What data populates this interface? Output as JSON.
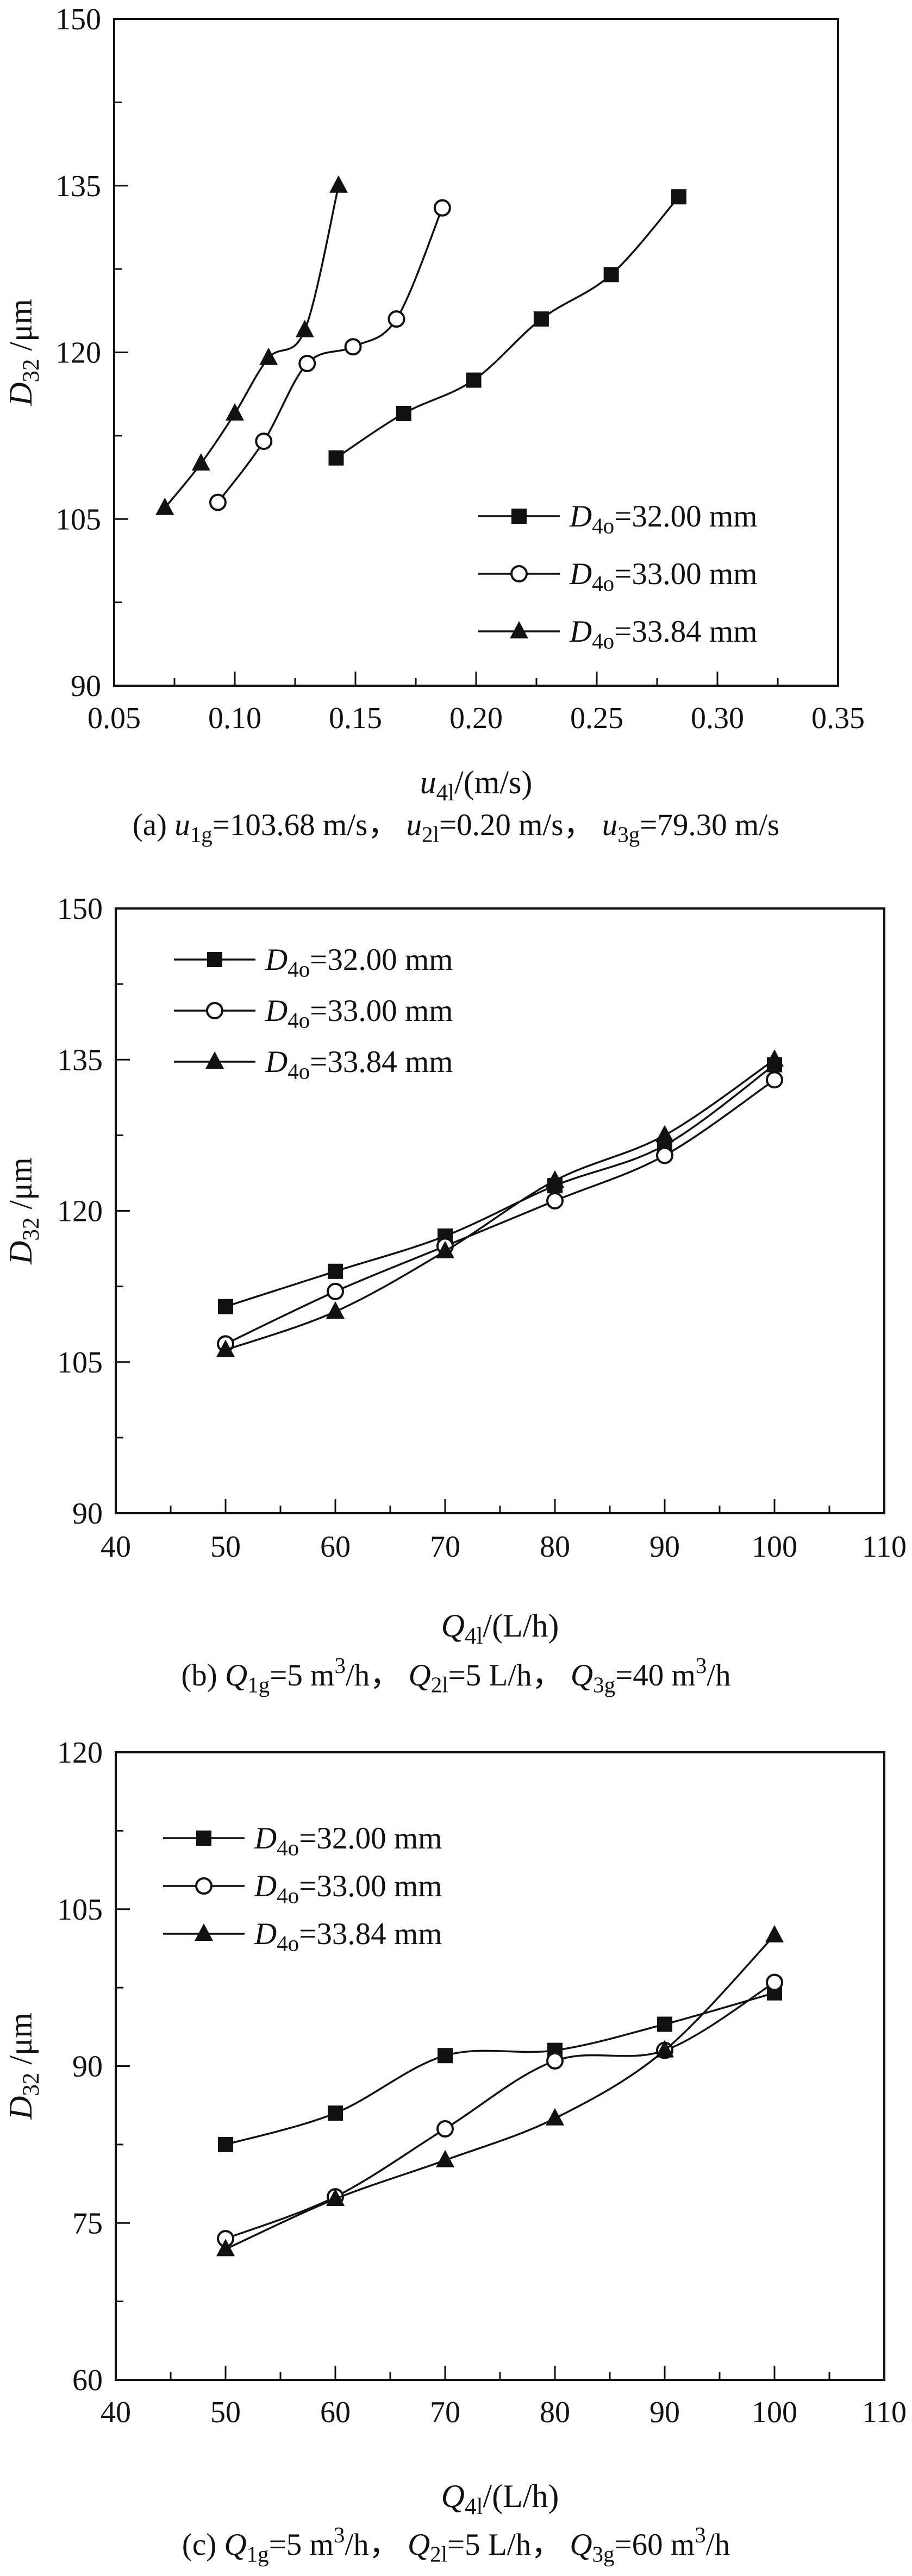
{
  "figure": {
    "background": "#ffffff",
    "ink": "#111111"
  },
  "chart_data": [
    {
      "id": "a",
      "type": "line",
      "title": "",
      "xlabel": "u4l/(m/s)",
      "ylabel": "D32 /μm",
      "caption": "(a) u1g=103.68 m/s， u2l=0.20 m/s， u3g=79.30 m/s",
      "xlabel_rich": [
        {
          "t": "u",
          "s": "i"
        },
        {
          "t": "4l",
          "s": "sub"
        },
        {
          "t": "/(m/s)"
        }
      ],
      "ylabel_rich": [
        {
          "t": "D",
          "s": "i"
        },
        {
          "t": "32",
          "s": "sub"
        },
        {
          "t": " /μm"
        }
      ],
      "caption_rich": [
        {
          "t": "(a) "
        },
        {
          "t": "u",
          "s": "i"
        },
        {
          "t": "1g",
          "s": "sub"
        },
        {
          "t": "=103.68 m/s， "
        },
        {
          "t": "u",
          "s": "i"
        },
        {
          "t": "2l",
          "s": "sub"
        },
        {
          "t": "=0.20 m/s， "
        },
        {
          "t": "u",
          "s": "i"
        },
        {
          "t": "3g",
          "s": "sub"
        },
        {
          "t": "=79.30 m/s"
        }
      ],
      "xlim": [
        0.05,
        0.35
      ],
      "ylim": [
        90,
        150
      ],
      "x_ticks": [
        0.05,
        0.1,
        0.15,
        0.2,
        0.25,
        0.3,
        0.35
      ],
      "x_tick_labels": [
        "0.05",
        "0.10",
        "0.15",
        "0.20",
        "0.25",
        "0.30",
        "0.35"
      ],
      "y_ticks": [
        90,
        105,
        120,
        135,
        150
      ],
      "y_tick_labels": [
        "90",
        "105",
        "120",
        "135",
        "150"
      ],
      "minor_ticks": true,
      "grid": false,
      "legend_position": "bottom-right",
      "series": [
        {
          "label": "D4o=32.00 mm",
          "label_rich": [
            {
              "t": "D",
              "s": "i"
            },
            {
              "t": "4o",
              "s": "sub"
            },
            {
              "t": "=32.00 mm"
            }
          ],
          "marker": "square",
          "points": [
            [
              0.142,
              110.5
            ],
            [
              0.17,
              114.5
            ],
            [
              0.199,
              117.5
            ],
            [
              0.227,
              123.0
            ],
            [
              0.256,
              127.0
            ],
            [
              0.284,
              134.0
            ]
          ]
        },
        {
          "label": "D4o=33.00 mm",
          "label_rich": [
            {
              "t": "D",
              "s": "i"
            },
            {
              "t": "4o",
              "s": "sub"
            },
            {
              "t": "=33.00 mm"
            }
          ],
          "marker": "circle",
          "points": [
            [
              0.093,
              106.5
            ],
            [
              0.112,
              112.0
            ],
            [
              0.13,
              119.0
            ],
            [
              0.149,
              120.5
            ],
            [
              0.167,
              123.0
            ],
            [
              0.186,
              133.0
            ]
          ]
        },
        {
          "label": "D4o=33.84 mm",
          "label_rich": [
            {
              "t": "D",
              "s": "i"
            },
            {
              "t": "4o",
              "s": "sub"
            },
            {
              "t": "=33.84 mm"
            }
          ],
          "marker": "triangle",
          "points": [
            [
              0.071,
              106.0
            ],
            [
              0.086,
              110.0
            ],
            [
              0.1,
              114.5
            ],
            [
              0.114,
              119.5
            ],
            [
              0.129,
              122.0
            ],
            [
              0.143,
              135.0
            ]
          ]
        }
      ]
    },
    {
      "id": "b",
      "type": "line",
      "title": "",
      "xlabel": "Q4l/(L/h)",
      "ylabel": "D32 /μm",
      "caption": "(b) Q1g=5 m³/h， Q2l=5 L/h， Q3g=40 m³/h",
      "xlabel_rich": [
        {
          "t": "Q",
          "s": "i"
        },
        {
          "t": "4l",
          "s": "sub"
        },
        {
          "t": "/(L/h)"
        }
      ],
      "ylabel_rich": [
        {
          "t": "D",
          "s": "i"
        },
        {
          "t": "32",
          "s": "sub"
        },
        {
          "t": " /μm"
        }
      ],
      "caption_rich": [
        {
          "t": "(b) "
        },
        {
          "t": "Q",
          "s": "i"
        },
        {
          "t": "1g",
          "s": "sub"
        },
        {
          "t": "=5 m"
        },
        {
          "t": "3",
          "s": "sup"
        },
        {
          "t": "/h， "
        },
        {
          "t": "Q",
          "s": "i"
        },
        {
          "t": "2l",
          "s": "sub"
        },
        {
          "t": "=5 L/h， "
        },
        {
          "t": "Q",
          "s": "i"
        },
        {
          "t": "3g",
          "s": "sub"
        },
        {
          "t": "=40 m"
        },
        {
          "t": "3",
          "s": "sup"
        },
        {
          "t": "/h"
        }
      ],
      "xlim": [
        40,
        110
      ],
      "ylim": [
        90,
        150
      ],
      "x_ticks": [
        40,
        50,
        60,
        70,
        80,
        90,
        100,
        110
      ],
      "x_tick_labels": [
        "40",
        "50",
        "60",
        "70",
        "80",
        "90",
        "100",
        "110"
      ],
      "y_ticks": [
        90,
        105,
        120,
        135,
        150
      ],
      "y_tick_labels": [
        "90",
        "105",
        "120",
        "135",
        "150"
      ],
      "minor_ticks": true,
      "grid": false,
      "legend_position": "top-left",
      "series": [
        {
          "label": "D4o=32.00 mm",
          "label_rich": [
            {
              "t": "D",
              "s": "i"
            },
            {
              "t": "4o",
              "s": "sub"
            },
            {
              "t": "=32.00 mm"
            }
          ],
          "marker": "square",
          "points": [
            [
              50,
              110.5
            ],
            [
              60,
              114.0
            ],
            [
              70,
              117.5
            ],
            [
              80,
              122.5
            ],
            [
              90,
              126.5
            ],
            [
              100,
              134.5
            ]
          ]
        },
        {
          "label": "D4o=33.00 mm",
          "label_rich": [
            {
              "t": "D",
              "s": "i"
            },
            {
              "t": "4o",
              "s": "sub"
            },
            {
              "t": "=33.00 mm"
            }
          ],
          "marker": "circle",
          "points": [
            [
              50,
              106.8
            ],
            [
              60,
              112.0
            ],
            [
              70,
              116.5
            ],
            [
              80,
              121.0
            ],
            [
              90,
              125.5
            ],
            [
              100,
              133.0
            ]
          ]
        },
        {
          "label": "D4o=33.84 mm",
          "label_rich": [
            {
              "t": "D",
              "s": "i"
            },
            {
              "t": "4o",
              "s": "sub"
            },
            {
              "t": "=33.84 mm"
            }
          ],
          "marker": "triangle",
          "points": [
            [
              50,
              106.2
            ],
            [
              60,
              110.0
            ],
            [
              70,
              116.0
            ],
            [
              80,
              123.0
            ],
            [
              90,
              127.5
            ],
            [
              100,
              135.0
            ]
          ]
        }
      ]
    },
    {
      "id": "c",
      "type": "line",
      "title": "",
      "xlabel": "Q4l/(L/h)",
      "ylabel": "D32 /μm",
      "caption": "(c) Q1g=5 m³/h， Q2l=5 L/h， Q3g=60 m³/h",
      "xlabel_rich": [
        {
          "t": "Q",
          "s": "i"
        },
        {
          "t": "4l",
          "s": "sub"
        },
        {
          "t": "/(L/h)"
        }
      ],
      "ylabel_rich": [
        {
          "t": "D",
          "s": "i"
        },
        {
          "t": "32",
          "s": "sub"
        },
        {
          "t": " /μm"
        }
      ],
      "caption_rich": [
        {
          "t": "(c) "
        },
        {
          "t": "Q",
          "s": "i"
        },
        {
          "t": "1g",
          "s": "sub"
        },
        {
          "t": "=5 m"
        },
        {
          "t": "3",
          "s": "sup"
        },
        {
          "t": "/h， "
        },
        {
          "t": "Q",
          "s": "i"
        },
        {
          "t": "2l",
          "s": "sub"
        },
        {
          "t": "=5 L/h， "
        },
        {
          "t": "Q",
          "s": "i"
        },
        {
          "t": "3g",
          "s": "sub"
        },
        {
          "t": "=60 m"
        },
        {
          "t": "3",
          "s": "sup"
        },
        {
          "t": "/h"
        }
      ],
      "xlim": [
        40,
        110
      ],
      "ylim": [
        60,
        120
      ],
      "x_ticks": [
        40,
        50,
        60,
        70,
        80,
        90,
        100,
        110
      ],
      "x_tick_labels": [
        "40",
        "50",
        "60",
        "70",
        "80",
        "90",
        "100",
        "110"
      ],
      "y_ticks": [
        60,
        75,
        90,
        105,
        120
      ],
      "y_tick_labels": [
        "60",
        "75",
        "90",
        "105",
        "120"
      ],
      "minor_ticks": true,
      "grid": false,
      "legend_position": "top-left",
      "series": [
        {
          "label": "D4o=32.00 mm",
          "label_rich": [
            {
              "t": "D",
              "s": "i"
            },
            {
              "t": "4o",
              "s": "sub"
            },
            {
              "t": "=32.00 mm"
            }
          ],
          "marker": "square",
          "points": [
            [
              50,
              82.5
            ],
            [
              60,
              85.5
            ],
            [
              70,
              91.0
            ],
            [
              80,
              91.5
            ],
            [
              90,
              94.0
            ],
            [
              100,
              97.0
            ]
          ]
        },
        {
          "label": "D4o=33.00 mm",
          "label_rich": [
            {
              "t": "D",
              "s": "i"
            },
            {
              "t": "4o",
              "s": "sub"
            },
            {
              "t": "=33.00 mm"
            }
          ],
          "marker": "circle",
          "points": [
            [
              50,
              73.5
            ],
            [
              60,
              77.5
            ],
            [
              70,
              84.0
            ],
            [
              80,
              90.5
            ],
            [
              90,
              91.5
            ],
            [
              100,
              98.0
            ]
          ]
        },
        {
          "label": "D4o=33.84 mm",
          "label_rich": [
            {
              "t": "D",
              "s": "i"
            },
            {
              "t": "4o",
              "s": "sub"
            },
            {
              "t": "=33.84 mm"
            }
          ],
          "marker": "triangle",
          "points": [
            [
              50,
              72.5
            ],
            [
              60,
              77.3
            ],
            [
              70,
              81.0
            ],
            [
              80,
              85.0
            ],
            [
              90,
              91.5
            ],
            [
              100,
              102.5
            ]
          ]
        }
      ]
    }
  ]
}
